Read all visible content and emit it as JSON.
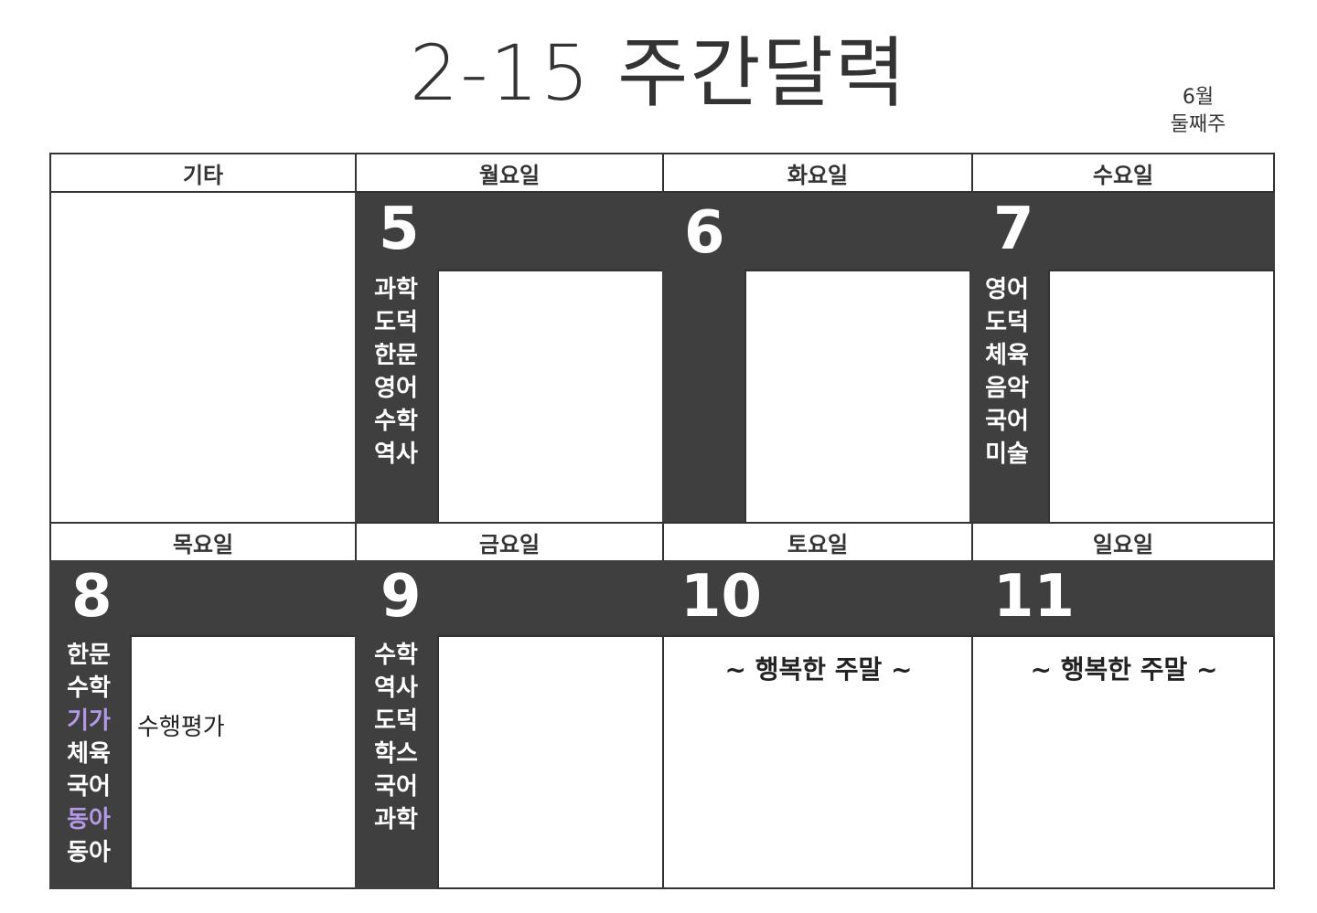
{
  "title": "2-15 주간달력",
  "week_label": {
    "month": "6월",
    "week": "둘째주"
  },
  "headers": {
    "etc": "기타",
    "mon": "월요일",
    "tue": "화요일",
    "wed": "수요일",
    "thu": "목요일",
    "fri": "금요일",
    "sat": "토요일",
    "sun": "일요일"
  },
  "days": {
    "mon": {
      "date": "5",
      "subjects": [
        "과학",
        "도덕",
        "한문",
        "영어",
        "수학",
        "역사"
      ]
    },
    "tue": {
      "date": "6",
      "subjects": []
    },
    "wed": {
      "date": "7",
      "subjects": [
        "영어",
        "도덕",
        "체육",
        "음악",
        "국어",
        "미술"
      ]
    },
    "thu": {
      "date": "8",
      "subjects": [
        "한문",
        "수학",
        "기가",
        "체육",
        "국어",
        "동아",
        "동아"
      ],
      "note": "수행평가"
    },
    "fri": {
      "date": "9",
      "subjects": [
        "수학",
        "역사",
        "도덕",
        "학스",
        "국어",
        "과학"
      ]
    },
    "sat": {
      "date": "10",
      "message": "~ 행복한 주말 ~"
    },
    "sun": {
      "date": "11",
      "message": "~ 행복한 주말 ~"
    }
  },
  "colors": {
    "band": "#3f3f3f",
    "highlight": "#b49ae6"
  }
}
